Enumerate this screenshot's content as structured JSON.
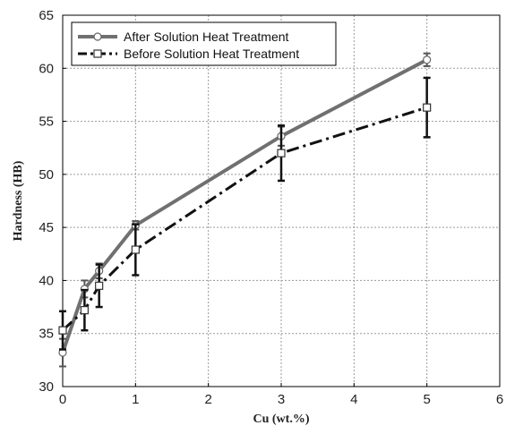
{
  "chart_data": {
    "type": "line",
    "xlabel": "Cu (wt.%)",
    "ylabel": "Hardness (HB)",
    "xlim": [
      0,
      6
    ],
    "ylim": [
      30,
      65
    ],
    "x_ticks": [
      "0",
      "1",
      "2",
      "3",
      "4",
      "5",
      "6"
    ],
    "y_ticks": [
      "30",
      "35",
      "40",
      "45",
      "50",
      "55",
      "60",
      "65"
    ],
    "grid": true,
    "legend_position": "top-left",
    "series": [
      {
        "name": "After Solution Heat Treatment",
        "color": "#707070",
        "line_style": "solid",
        "marker": "circle",
        "x": [
          0,
          0.3,
          0.5,
          1,
          3,
          5
        ],
        "y": [
          33.2,
          39.2,
          40.9,
          45.2,
          53.6,
          60.8
        ],
        "err": [
          1.3,
          0.8,
          0.7,
          0.4,
          0.9,
          0.6
        ]
      },
      {
        "name": "Before Solution Heat Treatment",
        "color": "#111111",
        "line_style": "dashdot",
        "marker": "square",
        "x": [
          0,
          0.3,
          0.5,
          1,
          3,
          5
        ],
        "y": [
          35.3,
          37.2,
          39.5,
          42.9,
          52.0,
          56.3
        ],
        "err": [
          1.8,
          1.9,
          2.0,
          2.4,
          2.6,
          2.8
        ]
      }
    ]
  }
}
